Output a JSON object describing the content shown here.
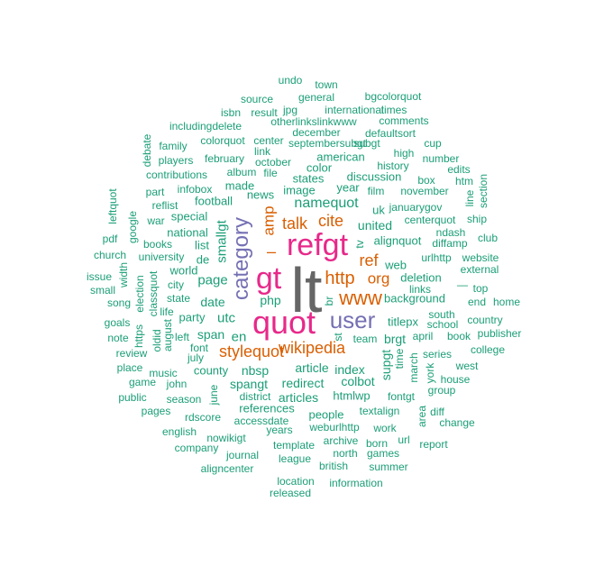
{
  "palette": {
    "green": "#1b9e77",
    "orange": "#d95f02",
    "purple": "#7570b3",
    "pink": "#e7298a",
    "gray": "#666666"
  },
  "words": [
    {
      "text": "lt",
      "color": "gray",
      "rot": 0
    },
    {
      "text": "refgt",
      "color": "pink",
      "rot": 0
    },
    {
      "text": "quot",
      "color": "pink",
      "rot": 0
    },
    {
      "text": "gt",
      "color": "pink",
      "rot": 0
    },
    {
      "text": "category",
      "color": "purple",
      "rot": 90
    },
    {
      "text": "user",
      "color": "purple",
      "rot": 0
    },
    {
      "text": "www",
      "color": "orange",
      "rot": 0
    },
    {
      "text": "http",
      "color": "orange",
      "rot": 0
    },
    {
      "text": "wikipedia",
      "color": "orange",
      "rot": 0
    },
    {
      "text": "stylequot",
      "color": "orange",
      "rot": 0
    },
    {
      "text": "amp",
      "color": "orange",
      "rot": 90
    },
    {
      "text": "talk",
      "color": "orange",
      "rot": 0
    },
    {
      "text": "cite",
      "color": "orange",
      "rot": 0
    },
    {
      "text": "ref",
      "color": "orange",
      "rot": 0
    },
    {
      "text": "org",
      "color": "orange",
      "rot": 0
    },
    {
      "text": "–",
      "color": "orange",
      "rot": 0
    },
    {
      "text": "namequot",
      "color": "green",
      "rot": 0
    },
    {
      "text": "smallgt",
      "color": "green",
      "rot": 90
    },
    {
      "text": "utc",
      "color": "green",
      "rot": 0
    },
    {
      "text": "page",
      "color": "green",
      "rot": 0
    },
    {
      "text": "date",
      "color": "green",
      "rot": 0
    },
    {
      "text": "php",
      "color": "green",
      "rot": 0
    },
    {
      "text": "en",
      "color": "green",
      "rot": 0
    },
    {
      "text": "span",
      "color": "green",
      "rot": 0
    },
    {
      "text": "nbsp",
      "color": "green",
      "rot": 0
    },
    {
      "text": "spangt",
      "color": "green",
      "rot": 0
    },
    {
      "text": "redirect",
      "color": "green",
      "rot": 0
    },
    {
      "text": "article",
      "color": "green",
      "rot": 0
    },
    {
      "text": "index",
      "color": "green",
      "rot": 0
    },
    {
      "text": "colbot",
      "color": "green",
      "rot": 0
    },
    {
      "text": "articles",
      "color": "green",
      "rot": 0
    },
    {
      "text": "htmlwp",
      "color": "green",
      "rot": 0
    },
    {
      "text": "background",
      "color": "green",
      "rot": 0
    },
    {
      "text": "deletion",
      "color": "green",
      "rot": 0
    },
    {
      "text": "web",
      "color": "green",
      "rot": 0
    },
    {
      "text": "alignquot",
      "color": "green",
      "rot": 0
    },
    {
      "text": "united",
      "color": "green",
      "rot": 0
    },
    {
      "text": "uk",
      "color": "green",
      "rot": 0
    },
    {
      "text": "news",
      "color": "green",
      "rot": 0
    },
    {
      "text": "image",
      "color": "green",
      "rot": 0
    },
    {
      "text": "states",
      "color": "green",
      "rot": 0
    },
    {
      "text": "year",
      "color": "green",
      "rot": 0
    },
    {
      "text": "discussion",
      "color": "green",
      "rot": 0
    },
    {
      "text": "american",
      "color": "green",
      "rot": 0
    },
    {
      "text": "color",
      "color": "green",
      "rot": 0
    },
    {
      "text": "made",
      "color": "green",
      "rot": 0
    },
    {
      "text": "football",
      "color": "green",
      "rot": 0
    },
    {
      "text": "special",
      "color": "green",
      "rot": 0
    },
    {
      "text": "national",
      "color": "green",
      "rot": 0
    },
    {
      "text": "list",
      "color": "green",
      "rot": 0
    },
    {
      "text": "de",
      "color": "green",
      "rot": 0
    },
    {
      "text": "world",
      "color": "green",
      "rot": 0
    },
    {
      "text": "city",
      "color": "green",
      "rot": 0
    },
    {
      "text": "state",
      "color": "green",
      "rot": 0
    },
    {
      "text": "party",
      "color": "green",
      "rot": 0
    },
    {
      "text": "font",
      "color": "green",
      "rot": 0
    },
    {
      "text": "july",
      "color": "green",
      "rot": 0
    },
    {
      "text": "left",
      "color": "green",
      "rot": 0
    },
    {
      "text": "county",
      "color": "green",
      "rot": 0
    },
    {
      "text": "music",
      "color": "green",
      "rot": 0
    },
    {
      "text": "john",
      "color": "green",
      "rot": 0
    },
    {
      "text": "season",
      "color": "green",
      "rot": 0
    },
    {
      "text": "district",
      "color": "green",
      "rot": 0
    },
    {
      "text": "references",
      "color": "green",
      "rot": 0
    },
    {
      "text": "accessdate",
      "color": "green",
      "rot": 0
    },
    {
      "text": "people",
      "color": "green",
      "rot": 0
    },
    {
      "text": "textalign",
      "color": "green",
      "rot": 0
    },
    {
      "text": "weburlhttp",
      "color": "green",
      "rot": 0
    },
    {
      "text": "years",
      "color": "green",
      "rot": 0
    },
    {
      "text": "fontgt",
      "color": "green",
      "rot": 0
    },
    {
      "text": "team",
      "color": "green",
      "rot": 0
    },
    {
      "text": "brgt",
      "color": "green",
      "rot": 0
    },
    {
      "text": "titlepx",
      "color": "green",
      "rot": 0
    },
    {
      "text": "school",
      "color": "green",
      "rot": 0
    },
    {
      "text": "south",
      "color": "green",
      "rot": 0
    },
    {
      "text": "links",
      "color": "green",
      "rot": 0
    },
    {
      "text": "april",
      "color": "green",
      "rot": 0
    },
    {
      "text": "book",
      "color": "green",
      "rot": 0
    },
    {
      "text": "series",
      "color": "green",
      "rot": 0
    },
    {
      "text": "house",
      "color": "green",
      "rot": 0
    },
    {
      "text": "group",
      "color": "green",
      "rot": 0
    },
    {
      "text": "west",
      "color": "green",
      "rot": 0
    },
    {
      "text": "college",
      "color": "green",
      "rot": 0
    },
    {
      "text": "publisher",
      "color": "green",
      "rot": 0
    },
    {
      "text": "country",
      "color": "green",
      "rot": 0
    },
    {
      "text": "home",
      "color": "green",
      "rot": 0
    },
    {
      "text": "end",
      "color": "green",
      "rot": 0
    },
    {
      "text": "top",
      "color": "green",
      "rot": 0
    },
    {
      "text": "—",
      "color": "green",
      "rot": 0
    },
    {
      "text": "external",
      "color": "green",
      "rot": 0
    },
    {
      "text": "urlhttp",
      "color": "green",
      "rot": 0
    },
    {
      "text": "diffamp",
      "color": "green",
      "rot": 0
    },
    {
      "text": "ndash",
      "color": "green",
      "rot": 0
    },
    {
      "text": "club",
      "color": "green",
      "rot": 0
    },
    {
      "text": "centerquot",
      "color": "green",
      "rot": 0
    },
    {
      "text": "ship",
      "color": "green",
      "rot": 0
    },
    {
      "text": "website",
      "color": "green",
      "rot": 0
    },
    {
      "text": "januarygov",
      "color": "green",
      "rot": 0
    },
    {
      "text": "film",
      "color": "green",
      "rot": 0
    },
    {
      "text": "november",
      "color": "green",
      "rot": 0
    },
    {
      "text": "box",
      "color": "green",
      "rot": 0
    },
    {
      "text": "htm",
      "color": "green",
      "rot": 0
    },
    {
      "text": "edits",
      "color": "green",
      "rot": 0
    },
    {
      "text": "number",
      "color": "green",
      "rot": 0
    },
    {
      "text": "history",
      "color": "green",
      "rot": 0
    },
    {
      "text": "high",
      "color": "green",
      "rot": 0
    },
    {
      "text": "cup",
      "color": "green",
      "rot": 0
    },
    {
      "text": "defaultsort",
      "color": "green",
      "rot": 0
    },
    {
      "text": "comments",
      "color": "green",
      "rot": 0
    },
    {
      "text": "subgt",
      "color": "green",
      "rot": 0
    },
    {
      "text": "septembersubgt",
      "color": "green",
      "rot": 0
    },
    {
      "text": "december",
      "color": "green",
      "rot": 0
    },
    {
      "text": "otherlinkslinkwww",
      "color": "green",
      "rot": 0
    },
    {
      "text": "international",
      "color": "green",
      "rot": 0
    },
    {
      "text": "times",
      "color": "green",
      "rot": 0
    },
    {
      "text": "bgcolorquot",
      "color": "green",
      "rot": 0
    },
    {
      "text": "general",
      "color": "green",
      "rot": 0
    },
    {
      "text": "source",
      "color": "green",
      "rot": 0
    },
    {
      "text": "isbn",
      "color": "green",
      "rot": 0
    },
    {
      "text": "result",
      "color": "green",
      "rot": 0
    },
    {
      "text": "jpg",
      "color": "green",
      "rot": 0
    },
    {
      "text": "undo",
      "color": "green",
      "rot": 0
    },
    {
      "text": "town",
      "color": "green",
      "rot": 0
    },
    {
      "text": "includingdelete",
      "color": "green",
      "rot": 0
    },
    {
      "text": "family",
      "color": "green",
      "rot": 0
    },
    {
      "text": "colorquot",
      "color": "green",
      "rot": 0
    },
    {
      "text": "center",
      "color": "green",
      "rot": 0
    },
    {
      "text": "link",
      "color": "green",
      "rot": 0
    },
    {
      "text": "players",
      "color": "green",
      "rot": 0
    },
    {
      "text": "february",
      "color": "green",
      "rot": 0
    },
    {
      "text": "october",
      "color": "green",
      "rot": 0
    },
    {
      "text": "contributions",
      "color": "green",
      "rot": 0
    },
    {
      "text": "album",
      "color": "green",
      "rot": 0
    },
    {
      "text": "file",
      "color": "green",
      "rot": 0
    },
    {
      "text": "part",
      "color": "green",
      "rot": 0
    },
    {
      "text": "infobox",
      "color": "green",
      "rot": 0
    },
    {
      "text": "reflist",
      "color": "green",
      "rot": 0
    },
    {
      "text": "war",
      "color": "green",
      "rot": 0
    },
    {
      "text": "books",
      "color": "green",
      "rot": 0
    },
    {
      "text": "church",
      "color": "green",
      "rot": 0
    },
    {
      "text": "university",
      "color": "green",
      "rot": 0
    },
    {
      "text": "pdf",
      "color": "green",
      "rot": 0
    },
    {
      "text": "issue",
      "color": "green",
      "rot": 0
    },
    {
      "text": "small",
      "color": "green",
      "rot": 0
    },
    {
      "text": "song",
      "color": "green",
      "rot": 0
    },
    {
      "text": "life",
      "color": "green",
      "rot": 0
    },
    {
      "text": "goals",
      "color": "green",
      "rot": 0
    },
    {
      "text": "note",
      "color": "green",
      "rot": 0
    },
    {
      "text": "review",
      "color": "green",
      "rot": 0
    },
    {
      "text": "place",
      "color": "green",
      "rot": 0
    },
    {
      "text": "game",
      "color": "green",
      "rot": 0
    },
    {
      "text": "public",
      "color": "green",
      "rot": 0
    },
    {
      "text": "pages",
      "color": "green",
      "rot": 0
    },
    {
      "text": "rdscore",
      "color": "green",
      "rot": 0
    },
    {
      "text": "english",
      "color": "green",
      "rot": 0
    },
    {
      "text": "nowikigt",
      "color": "green",
      "rot": 0
    },
    {
      "text": "company",
      "color": "green",
      "rot": 0
    },
    {
      "text": "journal",
      "color": "green",
      "rot": 0
    },
    {
      "text": "aligncenter",
      "color": "green",
      "rot": 0
    },
    {
      "text": "template",
      "color": "green",
      "rot": 0
    },
    {
      "text": "league",
      "color": "green",
      "rot": 0
    },
    {
      "text": "location",
      "color": "green",
      "rot": 0
    },
    {
      "text": "released",
      "color": "green",
      "rot": 0
    },
    {
      "text": "british",
      "color": "green",
      "rot": 0
    },
    {
      "text": "information",
      "color": "green",
      "rot": 0
    },
    {
      "text": "archive",
      "color": "green",
      "rot": 0
    },
    {
      "text": "north",
      "color": "green",
      "rot": 0
    },
    {
      "text": "born",
      "color": "green",
      "rot": 0
    },
    {
      "text": "games",
      "color": "green",
      "rot": 0
    },
    {
      "text": "summer",
      "color": "green",
      "rot": 0
    },
    {
      "text": "url",
      "color": "green",
      "rot": 0
    },
    {
      "text": "work",
      "color": "green",
      "rot": 0
    },
    {
      "text": "report",
      "color": "green",
      "rot": 0
    },
    {
      "text": "change",
      "color": "green",
      "rot": 0
    },
    {
      "text": "diff",
      "color": "green",
      "rot": 0
    },
    {
      "text": "leftquot",
      "color": "green",
      "rot": 90
    },
    {
      "text": "google",
      "color": "green",
      "rot": 90
    },
    {
      "text": "debate",
      "color": "green",
      "rot": 90
    },
    {
      "text": "width",
      "color": "green",
      "rot": 90
    },
    {
      "text": "election",
      "color": "green",
      "rot": 90
    },
    {
      "text": "classquot",
      "color": "green",
      "rot": 90
    },
    {
      "text": "https",
      "color": "green",
      "rot": 90
    },
    {
      "text": "oldid",
      "color": "green",
      "rot": 90
    },
    {
      "text": "august",
      "color": "green",
      "rot": 90
    },
    {
      "text": "june",
      "color": "green",
      "rot": 90
    },
    {
      "text": "br",
      "color": "green",
      "rot": 90
    },
    {
      "text": "st",
      "color": "green",
      "rot": 90
    },
    {
      "text": "tv",
      "color": "green",
      "rot": 90
    },
    {
      "text": "supgt",
      "color": "green",
      "rot": 90
    },
    {
      "text": "time",
      "color": "green",
      "rot": 90
    },
    {
      "text": "march",
      "color": "green",
      "rot": 90
    },
    {
      "text": "york",
      "color": "green",
      "rot": 90
    },
    {
      "text": "area",
      "color": "green",
      "rot": 90
    },
    {
      "text": "line",
      "color": "green",
      "rot": 90
    },
    {
      "text": "section",
      "color": "green",
      "rot": 90
    }
  ]
}
